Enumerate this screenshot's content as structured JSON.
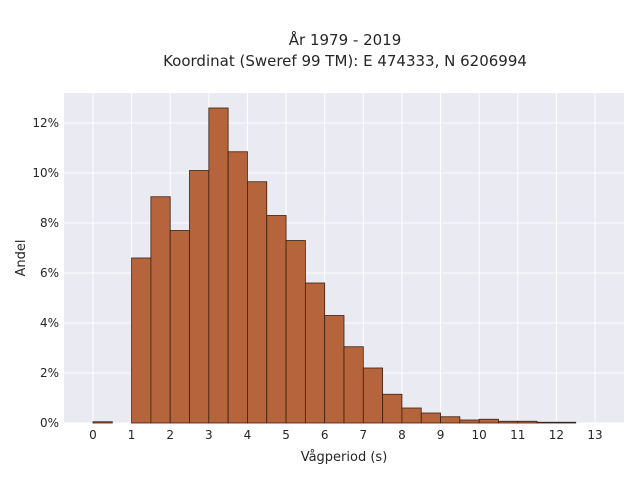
{
  "chart_data": {
    "type": "bar",
    "title": "År 1979 - 2019",
    "subtitle": "Koordinat (Sweref 99 TM): E 474333, N 6206994",
    "xlabel": "Vågperiod (s)",
    "ylabel": "Andel",
    "xlim": [
      -0.75,
      13.75
    ],
    "ylim": [
      0,
      13.2
    ],
    "x_ticks": [
      0,
      1,
      2,
      3,
      4,
      5,
      6,
      7,
      8,
      9,
      10,
      11,
      12,
      13
    ],
    "y_ticks": [
      0,
      2,
      4,
      6,
      8,
      10,
      12
    ],
    "y_tick_labels": [
      "0%",
      "2%",
      "4%",
      "6%",
      "8%",
      "10%",
      "12%"
    ],
    "bin_width": 0.5,
    "bins": [
      {
        "start": 0.0,
        "value": 0.05
      },
      {
        "start": 1.0,
        "value": 6.6
      },
      {
        "start": 1.5,
        "value": 9.05
      },
      {
        "start": 2.0,
        "value": 7.7
      },
      {
        "start": 2.5,
        "value": 10.1
      },
      {
        "start": 3.0,
        "value": 12.6
      },
      {
        "start": 3.5,
        "value": 10.85
      },
      {
        "start": 4.0,
        "value": 9.65
      },
      {
        "start": 4.5,
        "value": 8.3
      },
      {
        "start": 5.0,
        "value": 7.3
      },
      {
        "start": 5.5,
        "value": 5.6
      },
      {
        "start": 6.0,
        "value": 4.3
      },
      {
        "start": 6.5,
        "value": 3.05
      },
      {
        "start": 7.0,
        "value": 2.2
      },
      {
        "start": 7.5,
        "value": 1.15
      },
      {
        "start": 8.0,
        "value": 0.6
      },
      {
        "start": 8.5,
        "value": 0.4
      },
      {
        "start": 9.0,
        "value": 0.25
      },
      {
        "start": 9.5,
        "value": 0.12
      },
      {
        "start": 10.0,
        "value": 0.15
      },
      {
        "start": 10.5,
        "value": 0.07
      },
      {
        "start": 11.0,
        "value": 0.07
      },
      {
        "start": 11.5,
        "value": 0.03
      },
      {
        "start": 12.0,
        "value": 0.03
      }
    ],
    "grid": true,
    "colors": {
      "bar_fill": "#b5643c",
      "bar_edge": "#3a2010",
      "plot_bg": "#eaeaf2",
      "grid": "#ffffff"
    }
  }
}
